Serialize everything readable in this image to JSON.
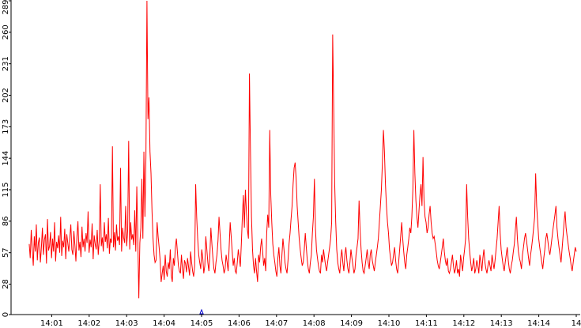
{
  "chart_data": {
    "type": "line",
    "title": "",
    "xlabel": "",
    "ylabel": "",
    "ylim": [
      0,
      289
    ],
    "y_ticks": [
      0,
      28,
      57,
      86,
      115,
      144,
      173,
      202,
      231,
      260,
      289
    ],
    "x_ticks": [
      "14:01",
      "14:02",
      "14:03",
      "14:04",
      "14:05",
      "14:06",
      "14:07",
      "14:08",
      "14:09",
      "14:10",
      "14:11",
      "14:12",
      "14:13",
      "14:14",
      "14"
    ],
    "x_range_minutes": [
      0.4,
      15.0
    ],
    "grid": false,
    "legend": "none",
    "marker": {
      "x_minute": 5.0,
      "color": "#0000cc"
    },
    "colors": {
      "line": "#ff0000",
      "axis": "#000000",
      "background": "#ffffff"
    },
    "series": [
      {
        "values": [
          65,
          52,
          78,
          60,
          45,
          72,
          58,
          83,
          50,
          66,
          71,
          48,
          62,
          80,
          55,
          69,
          74,
          47,
          88,
          59,
          63,
          76,
          52,
          70,
          58,
          85,
          49,
          67,
          61,
          73,
          57,
          90,
          54,
          68,
          62,
          79,
          51,
          74,
          66,
          58,
          71,
          83,
          60,
          55,
          77,
          64,
          49,
          72,
          86,
          59,
          67,
          53,
          81,
          62,
          70,
          58,
          75,
          66,
          95,
          57,
          69,
          62,
          84,
          51,
          73,
          65,
          60,
          78,
          55,
          68,
          120,
          63,
          71,
          58,
          85,
          67,
          74,
          61,
          89,
          56,
          70,
          66,
          155,
          62,
          76,
          59,
          83,
          68,
          72,
          64,
          135,
          58,
          80,
          71,
          66,
          100,
          63,
          77,
          160,
          60,
          85,
          69,
          74,
          64,
          96,
          58,
          118,
          71,
          15,
          66,
          80,
          125,
          70,
          150,
          90,
          145,
          289,
          180,
          200,
          150,
          130,
          95,
          70,
          55,
          48,
          50,
          85,
          72,
          62,
          50,
          30,
          38,
          45,
          32,
          55,
          40,
          35,
          48,
          42,
          60,
          36,
          30,
          52,
          45,
          62,
          70,
          58,
          45,
          40,
          38,
          55,
          42,
          33,
          50,
          47,
          39,
          52,
          44,
          36,
          58,
          48,
          40,
          35,
          45,
          120,
          90,
          70,
          55,
          48,
          42,
          60,
          52,
          38,
          45,
          72,
          60,
          48,
          40,
          55,
          80,
          65,
          52,
          42,
          38,
          48,
          55,
          68,
          90,
          75,
          60,
          50,
          45,
          38,
          42,
          55,
          48,
          40,
          62,
          85,
          72,
          58,
          45,
          52,
          40,
          38,
          48,
          60,
          52,
          44,
          65,
          90,
          110,
          80,
          115,
          95,
          78,
          70,
          222,
          150,
          90,
          60,
          45,
          38,
          52,
          40,
          30,
          55,
          48,
          62,
          70,
          58,
          45,
          52,
          40,
          75,
          92,
          80,
          170,
          110,
          85,
          65,
          55,
          48,
          40,
          35,
          52,
          62,
          45,
          38,
          55,
          70,
          60,
          48,
          42,
          38,
          50,
          65,
          75,
          88,
          100,
          120,
          135,
          140,
          125,
          100,
          85,
          70,
          60,
          52,
          45,
          48,
          60,
          75,
          62,
          50,
          42,
          38,
          48,
          55,
          75,
          90,
          125,
          80,
          60,
          52,
          45,
          40,
          38,
          55,
          48,
          60,
          52,
          45,
          40,
          48,
          55,
          62,
          70,
          85,
          258,
          190,
          120,
          85,
          60,
          48,
          42,
          38,
          52,
          60,
          48,
          40,
          55,
          62,
          50,
          42,
          38,
          48,
          60,
          52,
          45,
          38,
          42,
          55,
          62,
          70,
          105,
          78,
          60,
          48,
          40,
          38,
          45,
          52,
          60,
          48,
          42,
          55,
          60,
          50,
          45,
          40,
          48,
          55,
          62,
          70,
          85,
          100,
          115,
          140,
          170,
          150,
          120,
          100,
          85,
          75,
          60,
          52,
          45,
          48,
          55,
          62,
          50,
          42,
          38,
          48,
          60,
          72,
          85,
          70,
          58,
          48,
          42,
          55,
          62,
          70,
          80,
          75,
          90,
          115,
          170,
          130,
          105,
          90,
          80,
          95,
          110,
          120,
          100,
          145,
          105,
          90,
          85,
          75,
          80,
          92,
          100,
          85,
          75,
          70,
          72,
          65,
          58,
          50,
          45,
          42,
          48,
          55,
          62,
          70,
          58,
          50,
          45,
          52,
          40,
          38,
          42,
          48,
          55,
          45,
          38,
          42,
          50,
          38,
          42,
          35,
          55,
          48,
          40,
          52,
          60,
          70,
          120,
          90,
          70,
          58,
          48,
          40,
          45,
          52,
          38,
          42,
          50,
          45,
          38,
          55,
          48,
          40,
          52,
          60,
          48,
          42,
          38,
          45,
          50,
          45,
          40,
          55,
          48,
          42,
          50,
          60,
          70,
          85,
          100,
          75,
          60,
          52,
          45,
          40,
          48,
          55,
          62,
          50,
          42,
          38,
          45,
          50,
          58,
          65,
          78,
          90,
          70,
          58,
          52,
          48,
          42,
          55,
          62,
          70,
          75,
          68,
          60,
          52,
          45,
          55,
          62,
          70,
          80,
          90,
          130,
          100,
          85,
          70,
          62,
          55,
          48,
          42,
          52,
          60,
          70,
          75,
          68,
          60,
          55,
          62,
          70,
          78,
          85,
          92,
          100,
          80,
          70,
          62,
          55,
          48,
          60,
          72,
          85,
          95,
          80,
          72,
          65,
          58,
          52,
          45,
          40,
          48,
          55,
          62,
          58
        ]
      }
    ]
  }
}
